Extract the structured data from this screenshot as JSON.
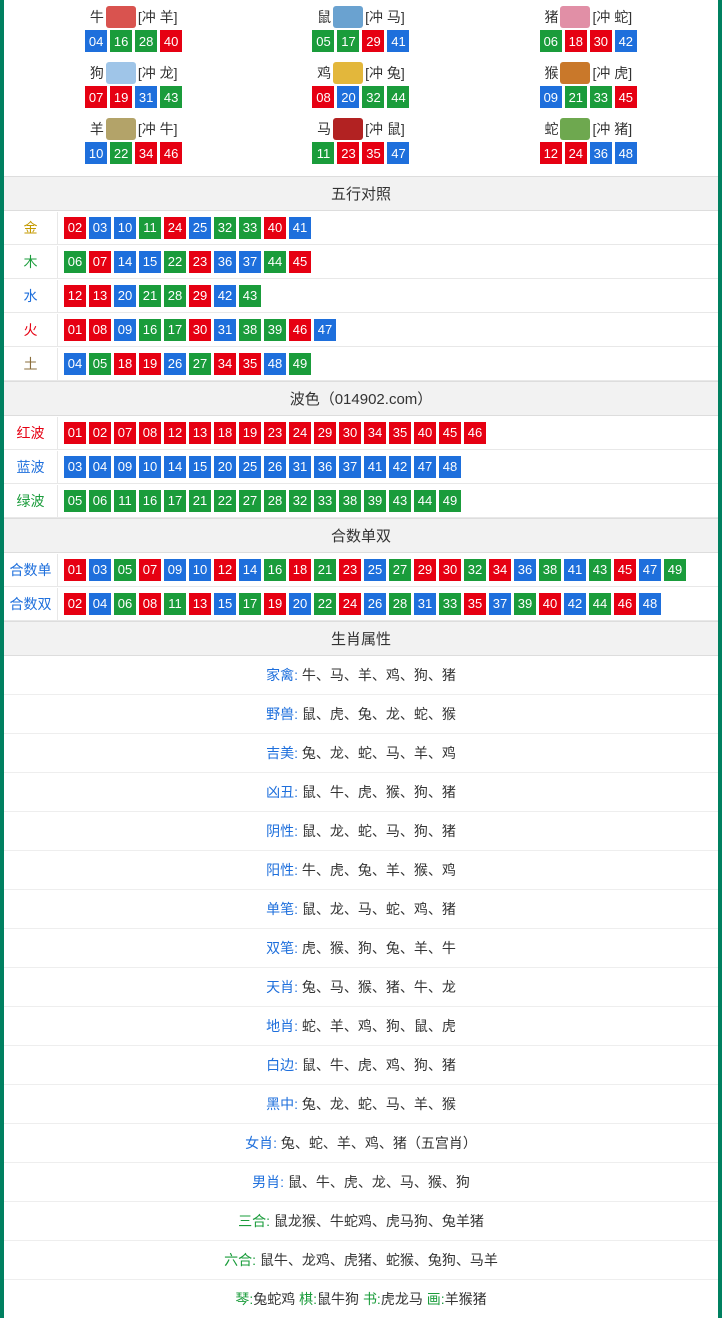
{
  "colors": {
    "red": "#e60012",
    "blue": "#1e6fdc",
    "green": "#1a9c3b",
    "border": "#008060"
  },
  "ballColorMap": {
    "01": "red",
    "02": "red",
    "07": "red",
    "08": "red",
    "12": "red",
    "13": "red",
    "18": "red",
    "19": "red",
    "23": "red",
    "24": "red",
    "29": "red",
    "30": "red",
    "34": "red",
    "35": "red",
    "40": "red",
    "45": "red",
    "46": "red",
    "03": "blue",
    "04": "blue",
    "09": "blue",
    "10": "blue",
    "14": "blue",
    "15": "blue",
    "20": "blue",
    "25": "blue",
    "26": "blue",
    "31": "blue",
    "36": "blue",
    "37": "blue",
    "41": "blue",
    "42": "blue",
    "47": "blue",
    "48": "blue",
    "05": "green",
    "06": "green",
    "11": "green",
    "16": "green",
    "17": "green",
    "21": "green",
    "22": "green",
    "27": "green",
    "28": "green",
    "32": "green",
    "33": "green",
    "38": "green",
    "39": "green",
    "43": "green",
    "44": "green",
    "49": "green"
  },
  "zodiac": [
    {
      "name": "牛",
      "clash": "[冲 羊]",
      "icon_color": "#d9534f",
      "balls": [
        "04",
        "16",
        "28",
        "40"
      ]
    },
    {
      "name": "鼠",
      "clash": "[冲 马]",
      "icon_color": "#6aa2d0",
      "balls": [
        "05",
        "17",
        "29",
        "41"
      ]
    },
    {
      "name": "猪",
      "clash": "[冲 蛇]",
      "icon_color": "#e18fa6",
      "balls": [
        "06",
        "18",
        "30",
        "42"
      ]
    },
    {
      "name": "狗",
      "clash": "[冲 龙]",
      "icon_color": "#9fc5e8",
      "balls": [
        "07",
        "19",
        "31",
        "43"
      ]
    },
    {
      "name": "鸡",
      "clash": "[冲 兔]",
      "icon_color": "#e3b73b",
      "balls": [
        "08",
        "20",
        "32",
        "44"
      ]
    },
    {
      "name": "猴",
      "clash": "[冲 虎]",
      "icon_color": "#c9782a",
      "balls": [
        "09",
        "21",
        "33",
        "45"
      ]
    },
    {
      "name": "羊",
      "clash": "[冲 牛]",
      "icon_color": "#b3a369",
      "balls": [
        "10",
        "22",
        "34",
        "46"
      ]
    },
    {
      "name": "马",
      "clash": "[冲 鼠]",
      "icon_color": "#b22222",
      "balls": [
        "11",
        "23",
        "35",
        "47"
      ]
    },
    {
      "name": "蛇",
      "clash": "[冲 猪]",
      "icon_color": "#6ea84f",
      "balls": [
        "12",
        "24",
        "36",
        "48"
      ]
    }
  ],
  "sections": {
    "wuxing_title": "五行对照",
    "bose_title": "波色（014902.com）",
    "heshu_title": "合数单双",
    "shuxing_title": "生肖属性"
  },
  "wuxing": [
    {
      "label": "金",
      "labelClass": "lab-gold",
      "balls": [
        "02",
        "03",
        "10",
        "11",
        "24",
        "25",
        "32",
        "33",
        "40",
        "41"
      ]
    },
    {
      "label": "木",
      "labelClass": "lab-wood",
      "balls": [
        "06",
        "07",
        "14",
        "15",
        "22",
        "23",
        "36",
        "37",
        "44",
        "45"
      ]
    },
    {
      "label": "水",
      "labelClass": "lab-water",
      "balls": [
        "12",
        "13",
        "20",
        "21",
        "28",
        "29",
        "42",
        "43"
      ]
    },
    {
      "label": "火",
      "labelClass": "lab-fire",
      "balls": [
        "01",
        "08",
        "09",
        "16",
        "17",
        "30",
        "31",
        "38",
        "39",
        "46",
        "47"
      ]
    },
    {
      "label": "土",
      "labelClass": "lab-earth",
      "balls": [
        "04",
        "05",
        "18",
        "19",
        "26",
        "27",
        "34",
        "35",
        "48",
        "49"
      ]
    }
  ],
  "bose": [
    {
      "label": "红波",
      "labelClass": "lab-red",
      "balls": [
        "01",
        "02",
        "07",
        "08",
        "12",
        "13",
        "18",
        "19",
        "23",
        "24",
        "29",
        "30",
        "34",
        "35",
        "40",
        "45",
        "46"
      ]
    },
    {
      "label": "蓝波",
      "labelClass": "lab-blue",
      "balls": [
        "03",
        "04",
        "09",
        "10",
        "14",
        "15",
        "20",
        "25",
        "26",
        "31",
        "36",
        "37",
        "41",
        "42",
        "47",
        "48"
      ]
    },
    {
      "label": "绿波",
      "labelClass": "lab-green",
      "balls": [
        "05",
        "06",
        "11",
        "16",
        "17",
        "21",
        "22",
        "27",
        "28",
        "32",
        "33",
        "38",
        "39",
        "43",
        "44",
        "49"
      ]
    }
  ],
  "heshu": [
    {
      "label": "合数单",
      "labelClass": "lab-blue",
      "balls": [
        "01",
        "03",
        "05",
        "07",
        "09",
        "10",
        "12",
        "14",
        "16",
        "18",
        "21",
        "23",
        "25",
        "27",
        "29",
        "30",
        "32",
        "34",
        "36",
        "38",
        "41",
        "43",
        "45",
        "47",
        "49"
      ]
    },
    {
      "label": "合数双",
      "labelClass": "lab-blue",
      "balls": [
        "02",
        "04",
        "06",
        "08",
        "11",
        "13",
        "15",
        "17",
        "19",
        "20",
        "22",
        "24",
        "26",
        "28",
        "31",
        "33",
        "35",
        "37",
        "39",
        "40",
        "42",
        "44",
        "46",
        "48"
      ]
    }
  ],
  "shuxing": [
    {
      "label": "家禽:",
      "value": "牛、马、羊、鸡、狗、猪",
      "green": false
    },
    {
      "label": "野兽:",
      "value": "鼠、虎、兔、龙、蛇、猴",
      "green": false
    },
    {
      "label": "吉美:",
      "value": "兔、龙、蛇、马、羊、鸡",
      "green": false
    },
    {
      "label": "凶丑:",
      "value": "鼠、牛、虎、猴、狗、猪",
      "green": false
    },
    {
      "label": "阴性:",
      "value": "鼠、龙、蛇、马、狗、猪",
      "green": false
    },
    {
      "label": "阳性:",
      "value": "牛、虎、兔、羊、猴、鸡",
      "green": false
    },
    {
      "label": "单笔:",
      "value": "鼠、龙、马、蛇、鸡、猪",
      "green": false
    },
    {
      "label": "双笔:",
      "value": "虎、猴、狗、兔、羊、牛",
      "green": false
    },
    {
      "label": "天肖:",
      "value": "兔、马、猴、猪、牛、龙",
      "green": false
    },
    {
      "label": "地肖:",
      "value": "蛇、羊、鸡、狗、鼠、虎",
      "green": false
    },
    {
      "label": "白边:",
      "value": "鼠、牛、虎、鸡、狗、猪",
      "green": false
    },
    {
      "label": "黑中:",
      "value": "兔、龙、蛇、马、羊、猴",
      "green": false
    },
    {
      "label": "女肖:",
      "value": "兔、蛇、羊、鸡、猪（五宫肖）",
      "green": false
    },
    {
      "label": "男肖:",
      "value": "鼠、牛、虎、龙、马、猴、狗",
      "green": false
    },
    {
      "label": "三合:",
      "value": "鼠龙猴、牛蛇鸡、虎马狗、兔羊猪",
      "green": true
    },
    {
      "label": "六合:",
      "value": "鼠牛、龙鸡、虎猪、蛇猴、兔狗、马羊",
      "green": true
    }
  ],
  "footer": {
    "parts": [
      {
        "label": "琴:",
        "value": "兔蛇鸡"
      },
      {
        "label": "棋:",
        "value": "鼠牛狗"
      },
      {
        "label": "书:",
        "value": "虎龙马"
      },
      {
        "label": "画:",
        "value": "羊猴猪"
      }
    ]
  }
}
